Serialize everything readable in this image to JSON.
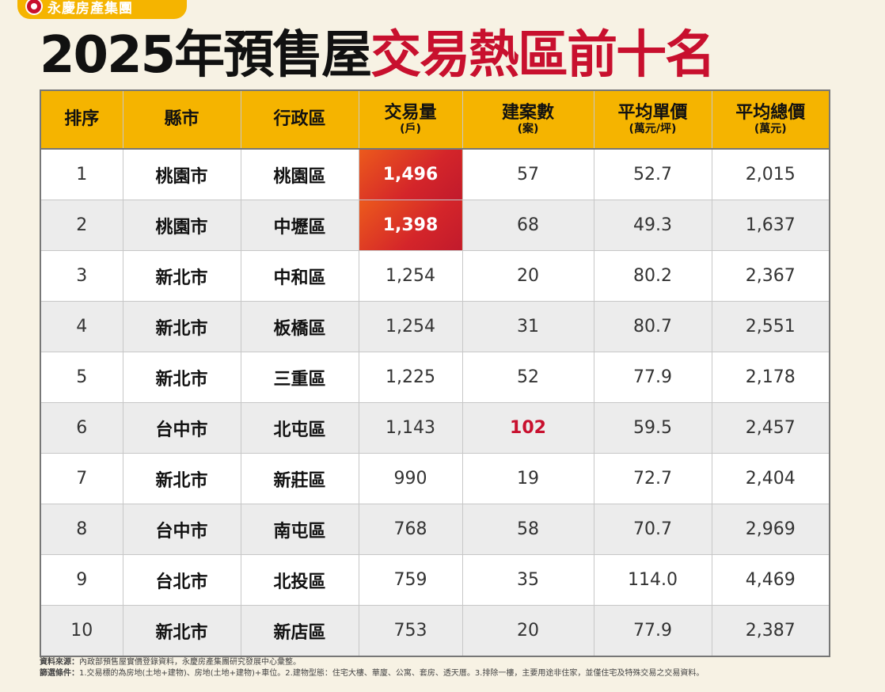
{
  "brand": {
    "name": "永慶房產集團"
  },
  "title": {
    "part1": "2025年預售屋",
    "part2": "交易熱區前十名"
  },
  "headers": [
    {
      "main": "排序",
      "sub": ""
    },
    {
      "main": "縣市",
      "sub": ""
    },
    {
      "main": "行政區",
      "sub": ""
    },
    {
      "main": "交易量",
      "sub": "(戶)"
    },
    {
      "main": "建案數",
      "sub": "(案)"
    },
    {
      "main": "平均單價",
      "sub": "(萬元/坪)"
    },
    {
      "main": "平均總價",
      "sub": "(萬元)"
    }
  ],
  "rows": [
    {
      "rank": "1",
      "city": "桃園市",
      "district": "桃園區",
      "volume": "1,496",
      "projects": "57",
      "unit_price": "52.7",
      "total_price": "2,015"
    },
    {
      "rank": "2",
      "city": "桃園市",
      "district": "中壢區",
      "volume": "1,398",
      "projects": "68",
      "unit_price": "49.3",
      "total_price": "1,637"
    },
    {
      "rank": "3",
      "city": "新北市",
      "district": "中和區",
      "volume": "1,254",
      "projects": "20",
      "unit_price": "80.2",
      "total_price": "2,367"
    },
    {
      "rank": "4",
      "city": "新北市",
      "district": "板橋區",
      "volume": "1,254",
      "projects": "31",
      "unit_price": "80.7",
      "total_price": "2,551"
    },
    {
      "rank": "5",
      "city": "新北市",
      "district": "三重區",
      "volume": "1,225",
      "projects": "52",
      "unit_price": "77.9",
      "total_price": "2,178"
    },
    {
      "rank": "6",
      "city": "台中市",
      "district": "北屯區",
      "volume": "1,143",
      "projects": "102",
      "unit_price": "59.5",
      "total_price": "2,457"
    },
    {
      "rank": "7",
      "city": "新北市",
      "district": "新莊區",
      "volume": "990",
      "projects": "19",
      "unit_price": "72.7",
      "total_price": "2,404"
    },
    {
      "rank": "8",
      "city": "台中市",
      "district": "南屯區",
      "volume": "768",
      "projects": "58",
      "unit_price": "70.7",
      "total_price": "2,969"
    },
    {
      "rank": "9",
      "city": "台北市",
      "district": "北投區",
      "volume": "759",
      "projects": "35",
      "unit_price": "114.0",
      "total_price": "4,469"
    },
    {
      "rank": "10",
      "city": "新北市",
      "district": "新店區",
      "volume": "753",
      "projects": "20",
      "unit_price": "77.9",
      "total_price": "2,387"
    }
  ],
  "notes": {
    "source_label": "資料來源：",
    "source_text": "內政部預售屋實價登錄資料，永慶房產集團研究發展中心彙整。",
    "criteria_label": "篩選條件：",
    "criteria_text": "1.交易標的為房地(土地+建物)、房地(土地+建物)+車位。2.建物型態：住宅大樓、華廈、公寓、套房、透天厝。3.排除一樓，主要用途非住家，並僅住宅及特殊交易之交易資料。"
  },
  "colors": {
    "header_bg": "#f5b400",
    "highlight": "#d4252a",
    "title_red": "#c8102e",
    "background": "#f7f2e4"
  }
}
